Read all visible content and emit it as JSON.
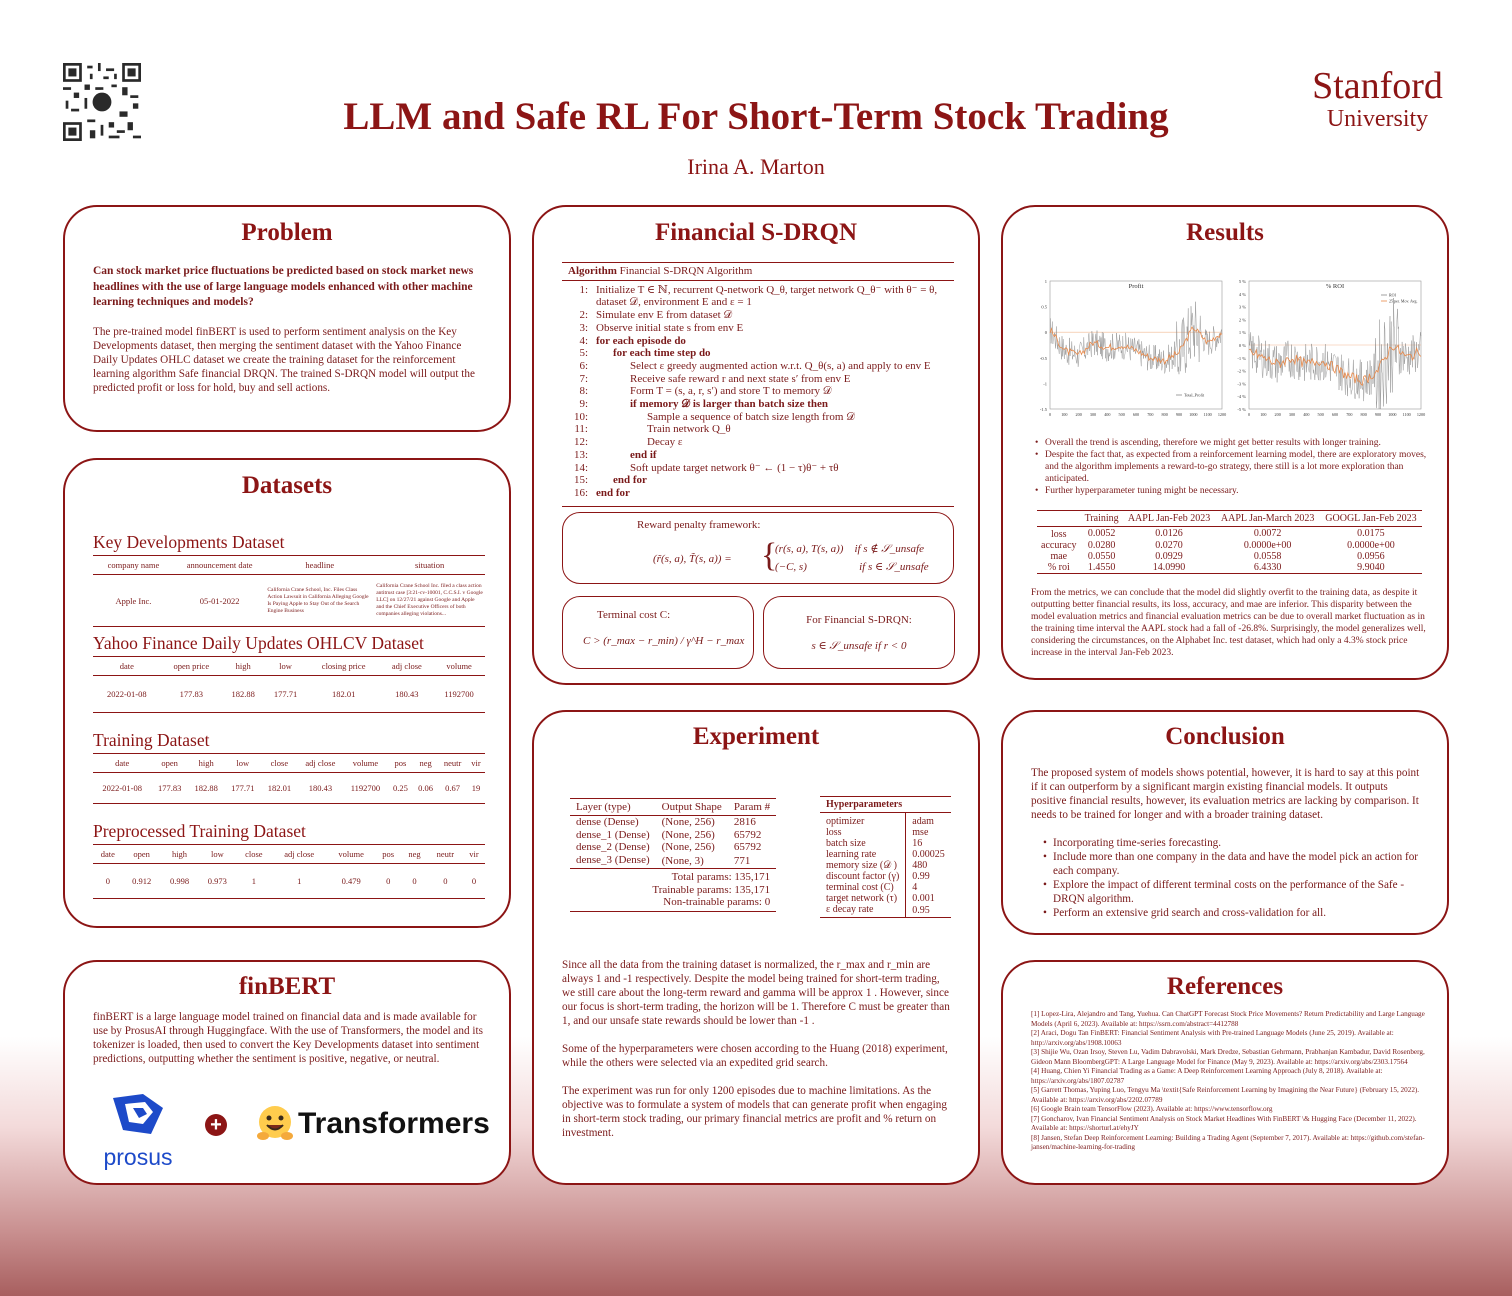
{
  "header": {
    "title": "LLM and Safe RL For Short-Term Stock Trading",
    "author": "Irina A. Marton",
    "logo_line1": "Stanford",
    "logo_line2": "University"
  },
  "problem": {
    "heading": "Problem",
    "question": "Can stock market price fluctuations be predicted based on stock market news headlines with the use of large language models enhanced with other machine learning techniques and models?",
    "text": "The pre-trained model finBERT is used to perform sentiment analysis on the Key Developments dataset, then merging the sentiment dataset with the Yahoo Finance Daily Updates OHLC dataset we create the training dataset for the reinforcement learning algorithm Safe financial DRQN. The trained S-DRQN model will output the predicted profit or loss for hold, buy and sell actions."
  },
  "datasets": {
    "heading": "Datasets",
    "key_dev": {
      "title": "Key Developments Dataset",
      "headers": [
        "company name",
        "announcement date",
        "headline",
        "situation"
      ],
      "row": [
        "Apple Inc.",
        "05-01-2022",
        "California Crane School, Inc. Files Class Action Lawsuit in California Alleging Google Is Paying Apple to Stay Out of the Search Engine Business",
        "California Crane School Inc. filed a class action antitrust case [3:21-cv-10001, C.C.S.I. v Google LLC] on 12/27/21 against Google and Apple and the Chief Executive Officers of both companies alleging violations..."
      ]
    },
    "yahoo": {
      "title": "Yahoo Finance Daily Updates OHLCV Dataset",
      "headers": [
        "date",
        "open price",
        "high",
        "low",
        "closing price",
        "adj close",
        "volume"
      ],
      "row": [
        "2022-01-08",
        "177.83",
        "182.88",
        "177.71",
        "182.01",
        "180.43",
        "1192700"
      ]
    },
    "training": {
      "title": "Training Dataset",
      "headers": [
        "date",
        "open",
        "high",
        "low",
        "close",
        "adj close",
        "volume",
        "pos",
        "neg",
        "neutr",
        "vir"
      ],
      "row": [
        "2022-01-08",
        "177.83",
        "182.88",
        "177.71",
        "182.01",
        "180.43",
        "1192700",
        "0.25",
        "0.06",
        "0.67",
        "19"
      ]
    },
    "preprocessed": {
      "title": "Preprocessed Training Dataset",
      "headers": [
        "date",
        "open",
        "high",
        "low",
        "close",
        "adj close",
        "volume",
        "pos",
        "neg",
        "neutr",
        "vir"
      ],
      "row": [
        "0",
        "0.912",
        "0.998",
        "0.973",
        "1",
        "1",
        "0.479",
        "0",
        "0",
        "0",
        "0"
      ]
    }
  },
  "finbert": {
    "heading": "finBERT",
    "text": "finBERT is a large language model trained on financial data and is made available for use by ProsusAI through Huggingface. With the use of Transformers, the model and its tokenizer is loaded, then used to convert the Key Developments dataset into sentiment predictions, outputting whether the sentiment is positive, negative, or neutral.",
    "prosus_label": "prosus",
    "plus": "+",
    "transformers_label": "Transformers"
  },
  "sdrqn": {
    "heading": "Financial S-DRQN",
    "algo_label": "Algorithm",
    "algo_name": "Financial S-DRQN Algorithm",
    "lines": [
      {
        "n": "1:",
        "indent": 0,
        "text": "Initialize T ∈ ℕ, recurrent Q-network Q_θ, target network Q_θ⁻ with θ⁻ = θ,"
      },
      {
        "n": "",
        "indent": 0,
        "text": "dataset 𝒟, environment E and ε = 1"
      },
      {
        "n": "2:",
        "indent": 0,
        "text": "Simulate env E from dataset 𝒟"
      },
      {
        "n": "3:",
        "indent": 0,
        "text": "Observe initial state s from env E"
      },
      {
        "n": "4:",
        "indent": 0,
        "text": "for each episode do"
      },
      {
        "n": "5:",
        "indent": 1,
        "text": "for each time step do"
      },
      {
        "n": "6:",
        "indent": 2,
        "text": "Select ε greedy augmented action w.r.t. Q_θ(s, a) and apply to env E"
      },
      {
        "n": "7:",
        "indent": 2,
        "text": "Receive safe reward r and next state s′ from env E"
      },
      {
        "n": "8:",
        "indent": 2,
        "text": "Form T = (s, a, r, s′) and store T to memory 𝒟"
      },
      {
        "n": "9:",
        "indent": 2,
        "text": "if memory 𝒟 is larger than batch size then"
      },
      {
        "n": "10:",
        "indent": 3,
        "text": "Sample a sequence of batch size length from 𝒟"
      },
      {
        "n": "11:",
        "indent": 3,
        "text": "Train network Q_θ"
      },
      {
        "n": "12:",
        "indent": 3,
        "text": "Decay ε"
      },
      {
        "n": "13:",
        "indent": 2,
        "text": "end if"
      },
      {
        "n": "14:",
        "indent": 2,
        "text": "Soft update target network θ⁻ ← (1 − τ)θ⁻ + τθ"
      },
      {
        "n": "15:",
        "indent": 1,
        "text": "end for"
      },
      {
        "n": "16:",
        "indent": 0,
        "text": "end for"
      }
    ],
    "reward_title": "Reward penalty framework:",
    "reward_lhs": "(r̃(s, a), T̃(s, a)) =",
    "reward_case1": "(r(s, a), T(s, a))    if s ∉ 𝒮_unsafe",
    "reward_case2": "(−C, s)                   if s ∈ 𝒮_unsafe",
    "terminal_title": "Terminal cost C:",
    "terminal_formula": "C > (r_max − r_min) / γ^H − r_max",
    "fs_title": "For Financial S-DRQN:",
    "fs_formula": "s ∈ 𝒮_unsafe if r < 0"
  },
  "results": {
    "heading": "Results",
    "chart_data": [
      {
        "type": "line",
        "title": "Profit",
        "x_ticks": [
          "0",
          "100",
          "200",
          "300",
          "400",
          "500",
          "600",
          "700",
          "800",
          "900",
          "1000",
          "1100",
          "1200"
        ],
        "y_ticks": [
          "1",
          "0.5",
          "0",
          "-0.5",
          "-1",
          "-1.5"
        ],
        "ylim": [
          -1.5,
          1
        ],
        "legend": "Total_Profit",
        "series": [
          {
            "name": "Total_Profit",
            "x": [
              0,
              100,
              200,
              300,
              400,
              500,
              600,
              700,
              800,
              900,
              1000,
              1100,
              1200
            ],
            "y": [
              0.05,
              -0.35,
              -0.45,
              -0.2,
              -0.3,
              -0.25,
              -0.35,
              -0.5,
              -0.55,
              -0.4,
              0.1,
              -0.2,
              0.0
            ]
          }
        ]
      },
      {
        "type": "line",
        "title": "% ROI",
        "x_ticks": [
          "0",
          "100",
          "200",
          "300",
          "400",
          "500",
          "600",
          "700",
          "800",
          "900",
          "1000",
          "1100",
          "1200"
        ],
        "y_ticks": [
          "5 %",
          "4 %",
          "3 %",
          "2 %",
          "1 %",
          "0 %",
          "-1 %",
          "-2 %",
          "-3 %",
          "-4 %",
          "-5 %"
        ],
        "ylim": [
          -5,
          5
        ],
        "legend": [
          "ROI",
          "25 per. Mov. Avg."
        ],
        "series": [
          {
            "name": "25 per. Mov. Avg.",
            "x": [
              0,
              100,
              200,
              300,
              400,
              500,
              600,
              700,
              800,
              900,
              1000,
              1100,
              1200
            ],
            "y": [
              -0.5,
              -1,
              -1.5,
              -1,
              -1.5,
              -1.2,
              -1.8,
              -2.5,
              -2.8,
              -2,
              0,
              -1,
              -0.5
            ]
          }
        ]
      }
    ],
    "bullets": [
      "Overall the trend is ascending, therefore we might get better results with longer training.",
      "Despite the fact that, as expected from a reinforcement learning model, there are exploratory moves, and the algorithm implements a reward-to-go strategy, there still is a lot more exploration than anticipated.",
      "Further hyperparameter tuning might be necessary."
    ],
    "table": {
      "headers": [
        "",
        "Training",
        "AAPL Jan-Feb 2023",
        "AAPL Jan-March 2023",
        "GOOGL Jan-Feb 2023"
      ],
      "rows": [
        [
          "loss",
          "0.0052",
          "0.0126",
          "0.0072",
          "0.0175"
        ],
        [
          "accuracy",
          "0.0280",
          "0.0270",
          "0.0000e+00",
          "0.0000e+00"
        ],
        [
          "mae",
          "0.0550",
          "0.0929",
          "0.0558",
          "0.0956"
        ],
        [
          "% roi",
          "1.4550",
          "14.0990",
          "6.4330",
          "9.9040"
        ]
      ]
    },
    "text": "From the metrics, we can conclude that the model did slightly overfit to the training data, as despite it outputting better financial results, its loss, accuracy, and mae are inferior. This disparity between the model evaluation metrics and financial evaluation metrics can be due to overall market fluctuation as in the training time interval the AAPL stock had a fall of -26.8%. Surprisingly, the model generalizes well, considering the circumstances, on the Alphabet Inc. test dataset, which had only a 4.3% stock price increase in the interval Jan-Feb 2023."
  },
  "experiment": {
    "heading": "Experiment",
    "layers_headers": [
      "Layer (type)",
      "Output Shape",
      "Param #"
    ],
    "layers": [
      [
        "dense (Dense)",
        "(None, 256)",
        "2816"
      ],
      [
        "dense_1 (Dense)",
        "(None, 256)",
        "65792"
      ],
      [
        "dense_2 (Dense)",
        "(None, 256)",
        "65792"
      ],
      [
        "dense_3 (Dense)",
        "(None, 3)",
        "771"
      ]
    ],
    "total": "Total params: 135,171",
    "trainable": "Trainable params: 135,171",
    "nontrainable": "Non-trainable params: 0",
    "hyper_title": "Hyperparameters",
    "hyper": [
      [
        "optimizer",
        "adam"
      ],
      [
        "loss",
        "mse"
      ],
      [
        "batch size",
        "16"
      ],
      [
        "learning rate",
        "0.00025"
      ],
      [
        "memory size (𝒟 )",
        "480"
      ],
      [
        "discount factor (γ)",
        "0.99"
      ],
      [
        "terminal cost (C)",
        "4"
      ],
      [
        "target network (τ)",
        "0.001"
      ],
      [
        "ε decay rate",
        "0.95"
      ]
    ],
    "p1": "Since all the data from the training dataset is normalized, the r_max and  r_min are always  1  and  -1  respectively. Despite the model being trained for short-term trading, we still care about the long-term reward and gamma will be approx 1 . However, since our focus is short-term trading, the horizon will be  1. Therefore C must be greater than 1, and our unsafe state rewards should be lower than -1 .",
    "p2": "Some of the hyperparameters were chosen according to the Huang (2018) experiment, while the others were selected via an expedited grid search.",
    "p3": "The experiment was run for only 1200 episodes due to machine limitations. As the objective was to formulate a system of models that can generate profit when engaging in short-term stock trading, our primary financial metrics are profit and % return on investment."
  },
  "conclusion": {
    "heading": "Conclusion",
    "text": "The proposed system of models shows potential, however, it is hard to say at this point if it can outperform by a significant margin existing financial models. It outputs positive financial results, however, its evaluation metrics are lacking by comparison. It needs to be trained for longer and with a broader training dataset.",
    "bullets": [
      "Incorporating time-series forecasting.",
      "Include more than one company in the data and have the model pick an action for each company.",
      "Explore the impact of different terminal costs on the performance of the Safe - DRQN algorithm.",
      "Perform an extensive grid search and cross-validation for all."
    ]
  },
  "references": {
    "heading": "References",
    "items": [
      "[1] Lopez-Lira, Alejandro and Tang, Yuehua. Can ChatGPT Forecast Stock Price Movements? Return Predictability and Large Language Models (April 6, 2023). Available at: https://ssrn.com/abstract=4412788",
      "[2] Araci, Dogu Tan FinBERT: Financial Sentiment Analysis with Pre-trained Language Models (June 25, 2019). Available at: http://arxiv.org/abs/1908.10063",
      "[3] Shijie Wu, Ozan Irsoy, Steven Lu, Vadim Dabravolski, Mark Dredze, Sebastian Gehrmann, Prabhanjan Kambadur, David Rosenberg, Gideon Mann BloombergGPT: A Large Language Model for Finance (May 9, 2023). Available at: https://arxiv.org/abs/2303.17564",
      "[4] Huang, Chien Yi Financial Trading as a Game: A Deep Reinforcement Learning Approach (July 8, 2018). Available at: https://arxiv.org/abs/1807.02787",
      "[5] Garrett Thomas, Yuping Luo, Tengyu Ma \\textit{Safe Reinforcement Learning by Imagining the Near Future} (February 15, 2022). Available at: https://arxiv.org/abs/2202.07789",
      "[6] Google Brain team TensorFlow (2023). Available at: https://www.tensorflow.org",
      "[7] Goncharov, Ivan Financial Sentiment Analysis on Stock Market Headlines With FinBERT \\& Hugging Face (December 11, 2022). Available at: https://shorturl.at/ehyJY",
      "[8] Jansen, Stefan Deep Reinforcement Learning: Building a Trading Agent (September 7, 2017). Available at: https://github.com/stefan-jansen/machine-learning-for-trading"
    ]
  },
  "colors": {
    "accent": "#8c1515",
    "chart_line": "#888888",
    "chart_avg": "#e8894a"
  }
}
